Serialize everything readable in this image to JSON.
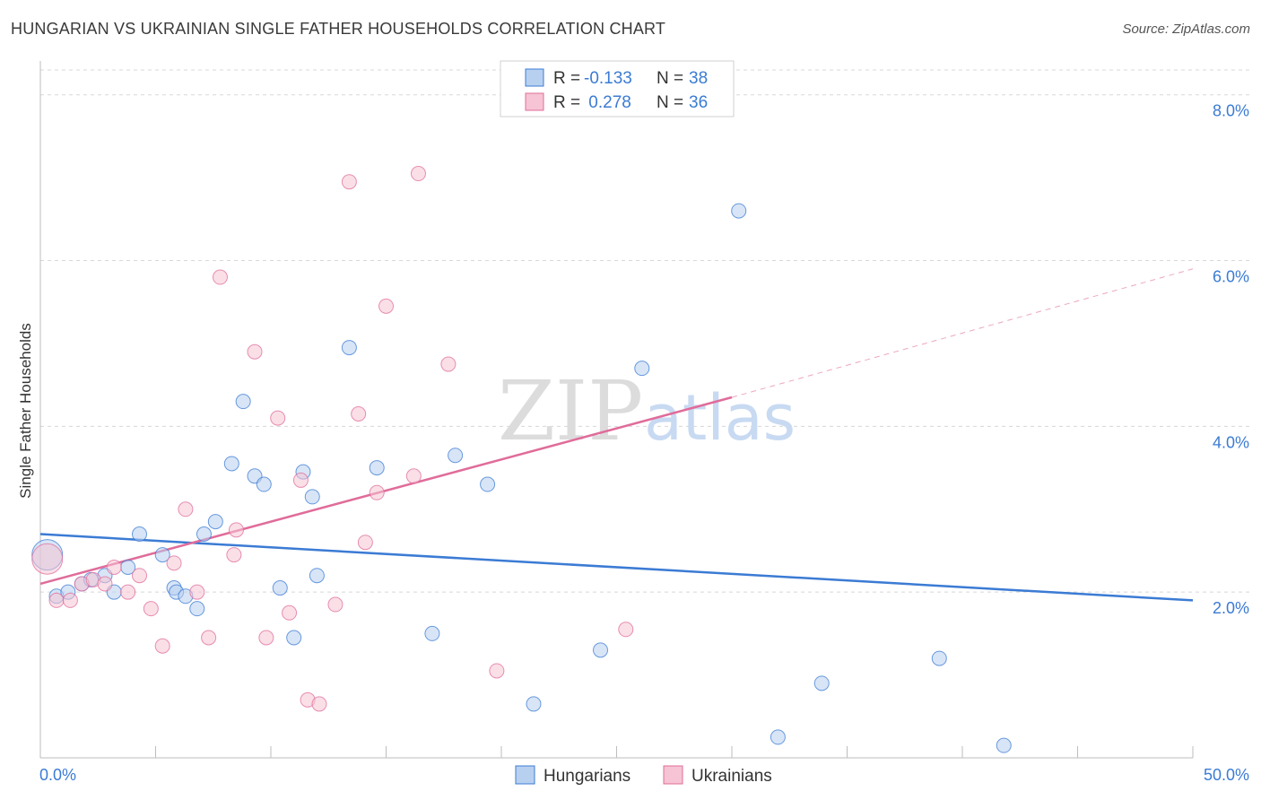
{
  "title": "HUNGARIAN VS UKRAINIAN SINGLE FATHER HOUSEHOLDS CORRELATION CHART",
  "source": "Source: ZipAtlas.com",
  "watermark": {
    "zip": "ZIP",
    "atlas": "atlas"
  },
  "colors": {
    "blue": "#3b7bd4",
    "pink": "#e06c9a",
    "blue_fill": "#b8d0f0",
    "pink_fill": "#f6c4d4",
    "grid": "#d8d8d8"
  },
  "legend": {
    "rows": [
      {
        "r_label": "R =",
        "r_value": "-0.133",
        "n_label": "N =",
        "n_value": "38"
      },
      {
        "r_label": "R =",
        "r_value": " 0.278",
        "n_label": "N =",
        "n_value": "36"
      }
    ]
  },
  "chart_data": {
    "type": "scatter",
    "xlabel": "",
    "ylabel": "Single Father Households",
    "xlim": [
      0,
      50
    ],
    "ylim": [
      0,
      8.3
    ],
    "x_tick_labels": [
      "0.0%",
      "50.0%"
    ],
    "y_ticks": [
      2,
      4,
      6,
      8
    ],
    "y_tick_labels": [
      "2.0%",
      "4.0%",
      "6.0%",
      "8.0%"
    ],
    "series": [
      {
        "name": "Hungarians",
        "points": [
          [
            0.3,
            2.45
          ],
          [
            0.7,
            1.95
          ],
          [
            1.2,
            2.0
          ],
          [
            1.8,
            2.1
          ],
          [
            2.2,
            2.15
          ],
          [
            2.8,
            2.2
          ],
          [
            3.2,
            2.0
          ],
          [
            3.8,
            2.3
          ],
          [
            4.3,
            2.7
          ],
          [
            5.3,
            2.45
          ],
          [
            5.8,
            2.05
          ],
          [
            5.9,
            2.0
          ],
          [
            6.3,
            1.95
          ],
          [
            6.8,
            1.8
          ],
          [
            7.1,
            2.7
          ],
          [
            7.6,
            2.85
          ],
          [
            8.3,
            3.55
          ],
          [
            8.8,
            4.3
          ],
          [
            9.3,
            3.4
          ],
          [
            9.7,
            3.3
          ],
          [
            10.4,
            2.05
          ],
          [
            11.0,
            1.45
          ],
          [
            11.4,
            3.45
          ],
          [
            11.8,
            3.15
          ],
          [
            12.0,
            2.2
          ],
          [
            13.4,
            4.95
          ],
          [
            14.6,
            3.5
          ],
          [
            17.0,
            1.5
          ],
          [
            18.0,
            3.65
          ],
          [
            19.4,
            3.3
          ],
          [
            21.4,
            0.65
          ],
          [
            24.3,
            1.3
          ],
          [
            26.1,
            4.7
          ],
          [
            30.3,
            6.6
          ],
          [
            32.0,
            0.25
          ],
          [
            33.9,
            0.9
          ],
          [
            39.0,
            1.2
          ],
          [
            41.8,
            0.15
          ]
        ],
        "trend": {
          "x0": 0,
          "y0": 2.7,
          "x1": 50,
          "y1": 1.9
        }
      },
      {
        "name": "Ukrainians",
        "points": [
          [
            0.3,
            2.4
          ],
          [
            0.7,
            1.9
          ],
          [
            1.3,
            1.9
          ],
          [
            1.8,
            2.1
          ],
          [
            2.3,
            2.15
          ],
          [
            2.8,
            2.1
          ],
          [
            3.2,
            2.3
          ],
          [
            3.8,
            2.0
          ],
          [
            4.3,
            2.2
          ],
          [
            4.8,
            1.8
          ],
          [
            5.3,
            1.35
          ],
          [
            5.8,
            2.35
          ],
          [
            6.3,
            3.0
          ],
          [
            6.8,
            2.0
          ],
          [
            7.3,
            1.45
          ],
          [
            7.8,
            5.8
          ],
          [
            8.4,
            2.45
          ],
          [
            8.5,
            2.75
          ],
          [
            9.3,
            4.9
          ],
          [
            9.8,
            1.45
          ],
          [
            10.3,
            4.1
          ],
          [
            10.8,
            1.75
          ],
          [
            11.3,
            3.35
          ],
          [
            11.6,
            0.7
          ],
          [
            12.1,
            0.65
          ],
          [
            12.8,
            1.85
          ],
          [
            13.4,
            6.95
          ],
          [
            13.8,
            4.15
          ],
          [
            14.1,
            2.6
          ],
          [
            14.6,
            3.2
          ],
          [
            15.0,
            5.45
          ],
          [
            16.2,
            3.4
          ],
          [
            16.4,
            7.05
          ],
          [
            17.7,
            4.75
          ],
          [
            19.8,
            1.05
          ],
          [
            25.4,
            1.55
          ]
        ],
        "trend": {
          "x0": 0,
          "y0": 2.1,
          "x1": 30,
          "y1": 4.35
        },
        "trend_dashed": {
          "x0": 30,
          "y0": 4.35,
          "x1": 50,
          "y1": 5.9
        }
      }
    ]
  }
}
